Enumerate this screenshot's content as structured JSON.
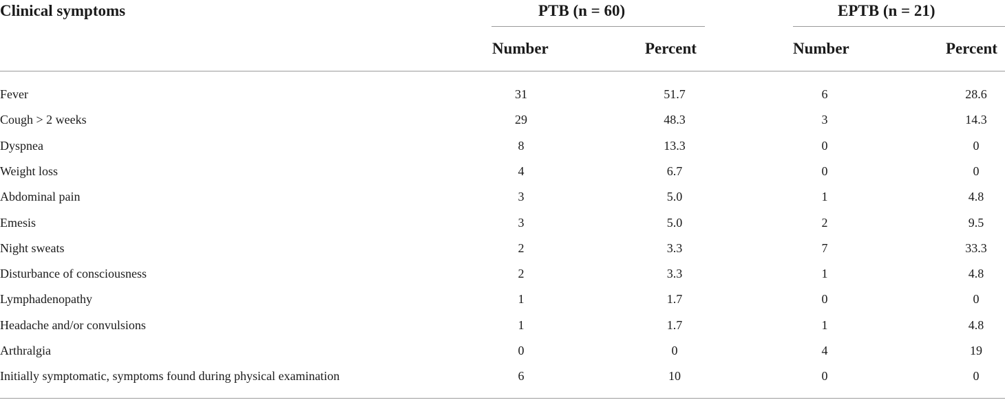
{
  "table": {
    "header": {
      "label_col": "Clinical symptoms",
      "groups": [
        "PTB (n = 60)",
        "EPTB (n = 21)"
      ],
      "subcols": [
        "Number",
        "Percent",
        "Number",
        "Percent"
      ]
    },
    "rows": [
      {
        "label": "Fever",
        "values": [
          "31",
          "51.7",
          "6",
          "28.6"
        ]
      },
      {
        "label": "Cough > 2 weeks",
        "values": [
          "29",
          "48.3",
          "3",
          "14.3"
        ]
      },
      {
        "label": "Dyspnea",
        "values": [
          "8",
          "13.3",
          "0",
          "0"
        ]
      },
      {
        "label": "Weight loss",
        "values": [
          "4",
          "6.7",
          "0",
          "0"
        ]
      },
      {
        "label": "Abdominal pain",
        "values": [
          "3",
          "5.0",
          "1",
          "4.8"
        ]
      },
      {
        "label": "Emesis",
        "values": [
          "3",
          "5.0",
          "2",
          "9.5"
        ]
      },
      {
        "label": "Night sweats",
        "values": [
          "2",
          "3.3",
          "7",
          "33.3"
        ]
      },
      {
        "label": "Disturbance of consciousness",
        "values": [
          "2",
          "3.3",
          "1",
          "4.8"
        ]
      },
      {
        "label": "Lymphadenopathy",
        "values": [
          "1",
          "1.7",
          "0",
          "0"
        ]
      },
      {
        "label": "Headache and/or convulsions",
        "values": [
          "1",
          "1.7",
          "1",
          "4.8"
        ]
      },
      {
        "label": "Arthralgia",
        "values": [
          "0",
          "0",
          "4",
          "19"
        ]
      },
      {
        "label": "Initially symptomatic, symptoms found during physical examination",
        "values": [
          "6",
          "10",
          "0",
          "0"
        ]
      }
    ]
  }
}
